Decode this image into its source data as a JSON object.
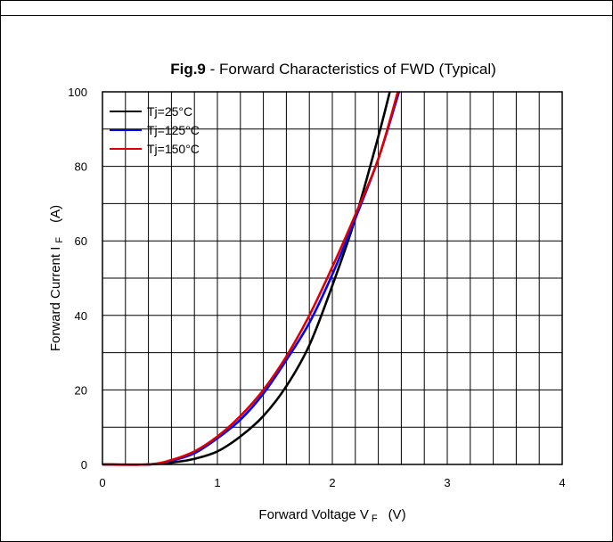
{
  "chart_data": {
    "type": "line",
    "title_bold": "Fig.9",
    "title_rest": " - Forward Characteristics of FWD (Typical)",
    "xlabel": {
      "main": "Forward Voltage V",
      "sub": "F",
      "unit": "(V)"
    },
    "ylabel": {
      "main": "Forward Current I",
      "sub": "F",
      "unit": "(A)"
    },
    "xlim": [
      0,
      4
    ],
    "ylim": [
      0,
      100
    ],
    "x_ticks": [
      "0",
      "1",
      "2",
      "3",
      "4"
    ],
    "y_ticks": [
      "0",
      "20",
      "40",
      "60",
      "80",
      "100"
    ],
    "grid": true,
    "x_minor_step": 0.2,
    "y_minor_step": 10,
    "legend_position": "top-left",
    "series": [
      {
        "name": "Tj=25°C",
        "color": "#000000",
        "points": [
          [
            0,
            0
          ],
          [
            0.4,
            0
          ],
          [
            0.6,
            0.5
          ],
          [
            0.8,
            1.5
          ],
          [
            1.0,
            3.5
          ],
          [
            1.2,
            7.5
          ],
          [
            1.4,
            13
          ],
          [
            1.6,
            21
          ],
          [
            1.8,
            32
          ],
          [
            2.0,
            48
          ],
          [
            2.2,
            66
          ],
          [
            2.4,
            88
          ],
          [
            2.5,
            100
          ]
        ]
      },
      {
        "name": "Tj=125°C",
        "color": "#0000ff",
        "points": [
          [
            0,
            0
          ],
          [
            0.4,
            0
          ],
          [
            0.6,
            1
          ],
          [
            0.8,
            3
          ],
          [
            1.0,
            7
          ],
          [
            1.2,
            12
          ],
          [
            1.4,
            19
          ],
          [
            1.6,
            28
          ],
          [
            1.8,
            38
          ],
          [
            2.0,
            51
          ],
          [
            2.2,
            66
          ],
          [
            2.4,
            82
          ],
          [
            2.58,
            100
          ]
        ]
      },
      {
        "name": "Tj=150°C",
        "color": "#dd0000",
        "points": [
          [
            0,
            0
          ],
          [
            0.4,
            0
          ],
          [
            0.6,
            1.2
          ],
          [
            0.8,
            3.5
          ],
          [
            1.0,
            7.5
          ],
          [
            1.2,
            13
          ],
          [
            1.4,
            20
          ],
          [
            1.6,
            29
          ],
          [
            1.8,
            40
          ],
          [
            2.0,
            53
          ],
          [
            2.2,
            67
          ],
          [
            2.4,
            82
          ],
          [
            2.57,
            100
          ]
        ]
      }
    ]
  }
}
